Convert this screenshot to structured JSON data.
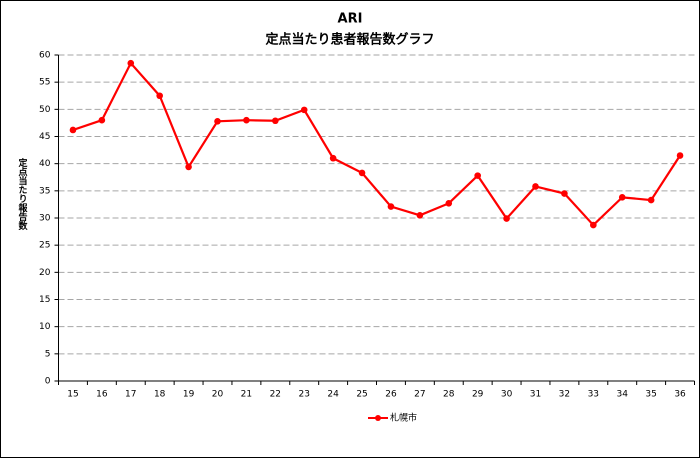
{
  "chart_data": {
    "type": "line",
    "title": "ARI",
    "subtitle": "定点当たり患者報告数グラフ",
    "y_label": "定点当たり報告数",
    "categories": [
      "15",
      "16",
      "17",
      "18",
      "19",
      "20",
      "21",
      "22",
      "23",
      "24",
      "25",
      "26",
      "27",
      "28",
      "29",
      "30",
      "31",
      "32",
      "33",
      "34",
      "35",
      "36"
    ],
    "series": [
      {
        "name": "札幌市",
        "color": "#ff0000",
        "values": [
          46.2,
          48,
          58.5,
          52.5,
          39.4,
          47.8,
          48,
          47.9,
          49.9,
          41,
          38.3,
          32.1,
          30.5,
          32.7,
          37.8,
          29.9,
          35.8,
          34.5,
          28.7,
          33.8,
          33.3,
          41.5
        ]
      }
    ],
    "ylim": [
      0,
      60
    ],
    "yticks": [
      0,
      5,
      10,
      15,
      20,
      25,
      30,
      35,
      40,
      45,
      50,
      55,
      60
    ],
    "grid": true,
    "legend": "bottom"
  }
}
